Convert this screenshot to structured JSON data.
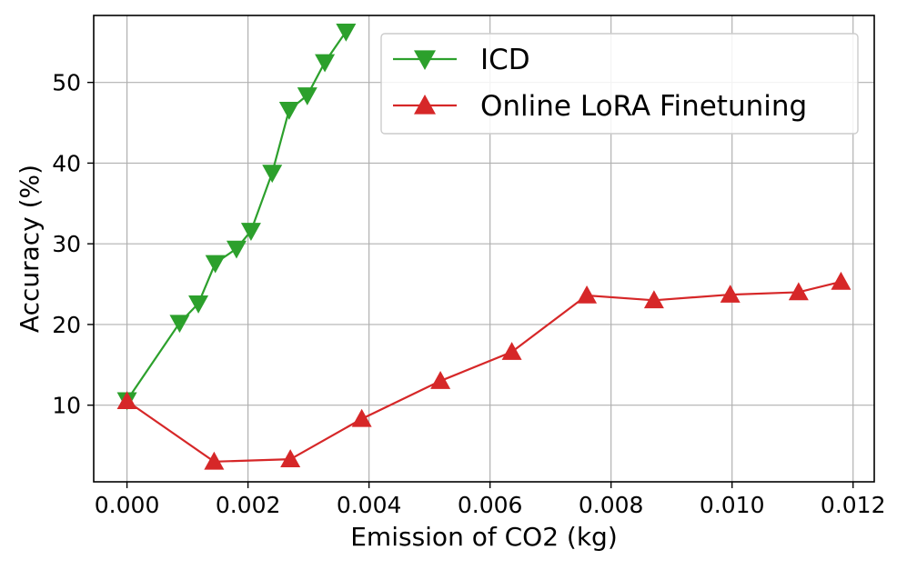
{
  "chart_data": {
    "type": "line",
    "title": "",
    "xlabel": "Emission of CO2 (kg)",
    "ylabel": "Accuracy (%)",
    "xlim": [
      -0.00055,
      0.01235
    ],
    "ylim": [
      0.5,
      58.3
    ],
    "x_ticks": [
      0.0,
      0.002,
      0.004,
      0.006,
      0.008,
      0.01,
      0.012
    ],
    "x_tick_labels": [
      "0.000",
      "0.002",
      "0.004",
      "0.006",
      "0.008",
      "0.010",
      "0.012"
    ],
    "y_ticks": [
      10,
      20,
      30,
      40,
      50
    ],
    "y_tick_labels": [
      "10",
      "20",
      "30",
      "40",
      "50"
    ],
    "grid": true,
    "legend_position": "top-right",
    "series": [
      {
        "name": "ICD",
        "color": "#2ca02c",
        "marker": "triangle-down",
        "x": [
          0.0,
          0.00087,
          0.00118,
          0.00146,
          0.00181,
          0.00205,
          0.0024,
          0.00268,
          0.00298,
          0.00327,
          0.00362
        ],
        "y": [
          10.6,
          20.2,
          22.6,
          27.6,
          29.4,
          31.6,
          38.8,
          46.6,
          48.4,
          52.5,
          56.3
        ]
      },
      {
        "name": "Online LoRA Finetuning",
        "color": "#d62728",
        "marker": "triangle-up",
        "x": [
          0.0,
          0.00144,
          0.0027,
          0.00388,
          0.00518,
          0.00636,
          0.0076,
          0.00871,
          0.00997,
          0.0111,
          0.0118
        ],
        "y": [
          10.5,
          3.0,
          3.3,
          8.3,
          13.0,
          16.6,
          23.6,
          23.0,
          23.7,
          24.0,
          25.3
        ]
      }
    ]
  }
}
